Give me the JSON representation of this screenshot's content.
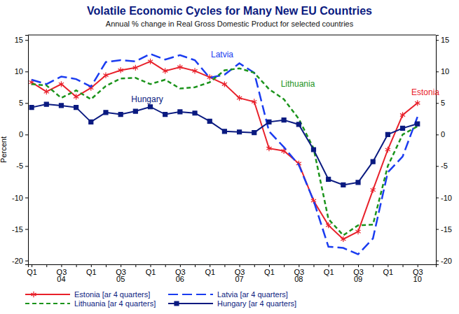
{
  "chart_data": {
    "type": "line",
    "title": "Volatile Economic Cycles for Many New EU Countries",
    "subtitle": "Annual % change in Real Gross Domestic Product for selected countries",
    "y_label": "Percent",
    "categories": [
      "Q1",
      null,
      "Q3",
      null,
      "Q1",
      null,
      "Q3",
      null,
      "Q1",
      null,
      "Q3",
      null,
      "Q1",
      null,
      "Q3",
      null,
      "Q1",
      null,
      "Q3",
      null,
      "Q1",
      null,
      "Q3",
      null,
      "Q1",
      null,
      "Q3"
    ],
    "year_labels": [
      "04",
      "05",
      "06",
      "07",
      "08",
      "09",
      "10"
    ],
    "ylim": [
      -20.6,
      15.8
    ],
    "yticks": [
      -20,
      -15,
      -10,
      -5,
      0,
      5,
      10,
      15
    ],
    "grid": false,
    "legend": "bottom",
    "annotations": [
      "Latvia",
      "Lithuania",
      "Hungary",
      "Estonia"
    ],
    "series": [
      {
        "name": "Estonia [ar 4 quarters]",
        "color": "#e8202a",
        "marker": "asterisk",
        "line_style": "solid",
        "values": [
          8.3,
          6.8,
          8.0,
          6.0,
          7.4,
          9.4,
          10.2,
          10.6,
          11.6,
          10.1,
          10.7,
          10.1,
          9.1,
          8.0,
          5.8,
          5.2,
          -2.2,
          -2.6,
          -4.6,
          -10.5,
          -14.4,
          -16.6,
          -15.4,
          -8.8,
          -2.4,
          3.1,
          5.0
        ]
      },
      {
        "name": "Latvia [ar 4 quarters]",
        "color": "#1a3cf0",
        "marker": "none",
        "line_style": "long-dash",
        "values": [
          8.7,
          8.0,
          9.2,
          8.8,
          7.6,
          11.5,
          11.8,
          11.6,
          12.8,
          11.9,
          12.6,
          11.8,
          9.0,
          9.5,
          11.3,
          9.8,
          0.5,
          -2.0,
          -4.8,
          -10.5,
          -17.8,
          -18.0,
          -19.0,
          -16.5,
          -6.0,
          -3.5,
          2.8
        ]
      },
      {
        "name": "Lithuania [ar 4 quarters]",
        "color": "#1c941c",
        "marker": "none",
        "line_style": "dash",
        "values": [
          8.0,
          7.8,
          5.8,
          7.0,
          5.6,
          7.7,
          8.9,
          9.0,
          8.0,
          8.7,
          7.3,
          7.5,
          8.3,
          10.2,
          10.5,
          9.8,
          7.2,
          5.6,
          2.5,
          -2.2,
          -13.4,
          -16.0,
          -14.4,
          -14.3,
          -5.0,
          0.0,
          1.3
        ]
      },
      {
        "name": "Hungary [ar 4 quarters]",
        "color": "#0a1a80",
        "marker": "square",
        "line_style": "solid",
        "values": [
          4.3,
          4.8,
          4.6,
          4.3,
          2.0,
          3.5,
          3.2,
          3.7,
          4.4,
          3.2,
          3.6,
          3.4,
          2.1,
          0.5,
          0.4,
          0.3,
          2.0,
          2.3,
          1.6,
          -2.4,
          -7.1,
          -8.0,
          -7.6,
          -4.3,
          0.0,
          1.0,
          1.7
        ]
      }
    ]
  }
}
